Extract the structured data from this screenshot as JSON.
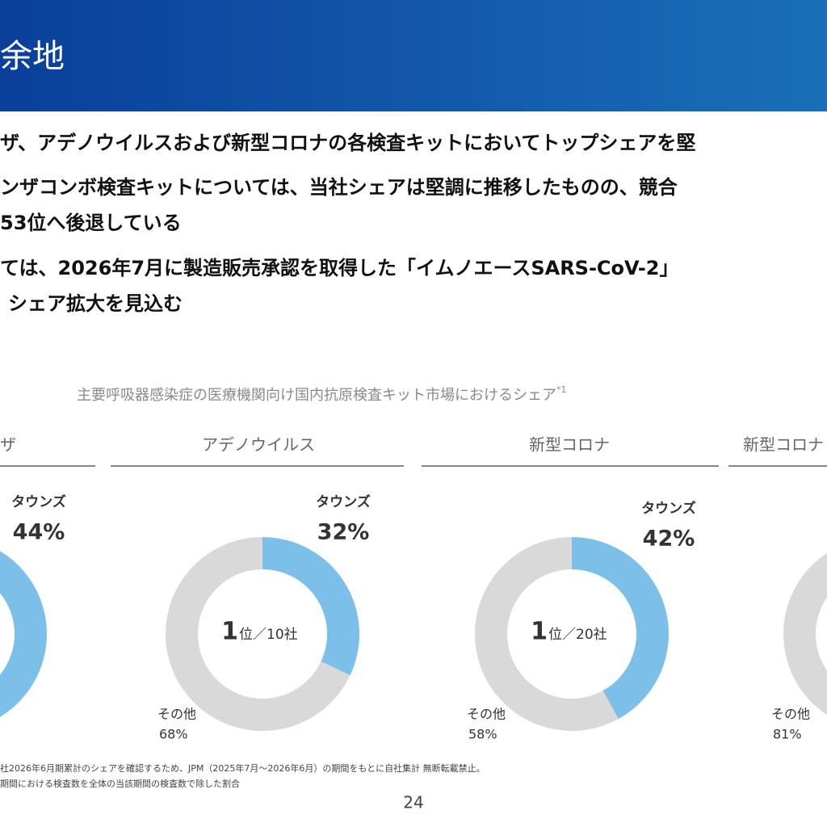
{
  "header": {
    "title": "余地"
  },
  "bullets": [
    "ザ、アデノウイルスおよび新型コロナの各検査キットにおいてトップシェアを堅",
    "ンザコンボ検査キットについては、当社シェアは堅調に推移したものの、競合",
    "53位へ後退している",
    "ては、2026年7月に製造販売承認を取得した「イムノエースSARS-CoV-2」",
    "シェア拡大を見込む"
  ],
  "section": {
    "title": "主要呼吸器感染症の医療機関向け国内抗原検査キット市場におけるシェア",
    "note_mark": "*1"
  },
  "chart_data": [
    {
      "type": "donut",
      "title": "ザ",
      "categories": [
        "タウンズ"
      ],
      "values": [
        44
      ],
      "value_labels": [
        "44%"
      ],
      "colors": [
        "#7cc0ea"
      ]
    },
    {
      "type": "donut",
      "title": "アデノウイルス",
      "categories": [
        "タウンズ",
        "その他"
      ],
      "values": [
        32,
        68
      ],
      "value_labels": [
        "32%",
        "68%"
      ],
      "colors": [
        "#7cc0ea",
        "#d9d9d9"
      ],
      "center_rank": "1",
      "center_label": "位／10社"
    },
    {
      "type": "donut",
      "title": "新型コロナ",
      "categories": [
        "タウンズ",
        "その他"
      ],
      "values": [
        42,
        58
      ],
      "value_labels": [
        "42%",
        "58%"
      ],
      "colors": [
        "#7cc0ea",
        "#d9d9d9"
      ],
      "center_rank": "1",
      "center_label": "位／20社"
    },
    {
      "type": "donut",
      "title": "新型コロナ",
      "categories": [
        "その他"
      ],
      "values": [
        81
      ],
      "value_labels": [
        "81%"
      ],
      "colors": [
        "#d9d9d9"
      ]
    }
  ],
  "footnotes": [
    "社2026年6月期累計のシェアを確認するため、JPM（2025年7月～2026年6月）の期間をもとに自社集計 無断転載禁止。",
    "期間における検査数を全体の当該期間の検査数で除した割合"
  ],
  "page_number": "24"
}
